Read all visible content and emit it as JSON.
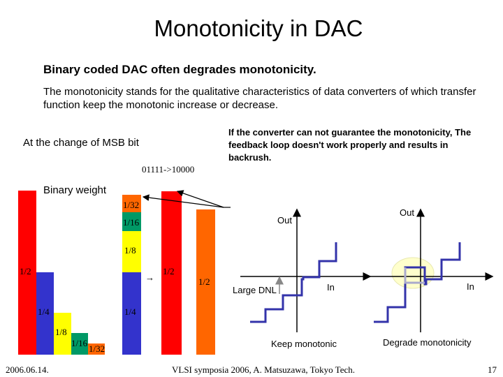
{
  "slide": {
    "title": "Monotonicity in DAC",
    "subtitle": "Binary coded DAC often degrades monotonicity.",
    "description": "The monotonicity stands for the qualitative characteristics of data converters of which transfer function keep the monotonic increase or decrease.",
    "msb_label": "At the change of MSB bit",
    "code_transition": "01111->10000",
    "note": "If the converter can not guarantee the monotonicity, The feedback loop doesn't work properly and results in backrush.",
    "binary_weight_label": "Binary weight",
    "footer_date": "2006.06.14.",
    "footer_venue": "VLSI symposia 2006,  A. Matsuzawa, Tokyo Tech.",
    "page_number": "17"
  },
  "weights": {
    "w_half_left": "1/2",
    "w_quarter_left": "1/4",
    "w_eighth_left": "1/8",
    "w_sixteenth_left": "1/16",
    "w_32nd_left": "1/32",
    "w_32nd_stack": "1/32",
    "w_16th_stack": "1/16",
    "w_8th_stack": "1/8",
    "w_quarter_stack": "1/4",
    "arrow": "→",
    "w_half_red": "1/2",
    "w_half_orange": "1/2"
  },
  "graphs": {
    "left": {
      "out_label": "Out",
      "in_label": "In",
      "dnl_label": "Large DNL",
      "caption": "Keep monotonic"
    },
    "right": {
      "out_label": "Out",
      "in_label": "In",
      "caption": "Degrade monotonicity"
    }
  },
  "colors": {
    "red": "#ff0000",
    "blue": "#3333cc",
    "yellow": "#ffff00",
    "teal": "#009966",
    "orange": "#ff6600",
    "step": "#3333aa",
    "highlight": "#ffffcc"
  }
}
